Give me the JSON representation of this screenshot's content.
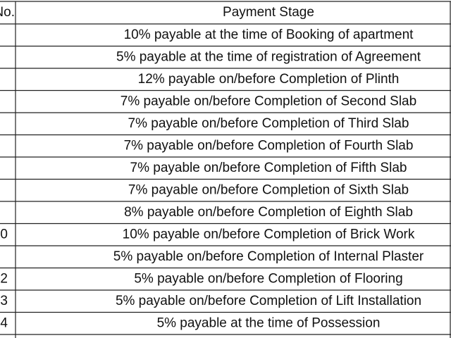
{
  "table": {
    "header": {
      "no": "No.",
      "stage": "Payment Stage"
    },
    "rows": [
      {
        "stage": "10% payable at the time of Booking of apartment"
      },
      {
        "stage": "5% payable at the time of registration of Agreement"
      },
      {
        "stage": "12% payable on/before Completion of Plinth"
      },
      {
        "stage": "7% payable on/before Completion of Second Slab"
      },
      {
        "stage": "7% payable on/before Completion of Third Slab"
      },
      {
        "stage": "7% payable on/before Completion of Fourth Slab"
      },
      {
        "stage": "7% payable on/before Completion of Fifth Slab"
      },
      {
        "stage": "7% payable on/before Completion of Sixth Slab"
      },
      {
        "stage": "8% payable on/before Completion of Eighth Slab"
      },
      {
        "no": "0",
        "stage": "10% payable on/before Completion of Brick Work"
      },
      {
        "stage": "5% payable on/before Completion of Internal Plaster"
      },
      {
        "no": "2",
        "stage": "5% payable on/before Completion of Flooring"
      },
      {
        "no": "3",
        "stage": "5% payable on/before Completion of Lift Installation"
      },
      {
        "no": "4",
        "stage": "5% payable at the time of Possession"
      }
    ]
  }
}
